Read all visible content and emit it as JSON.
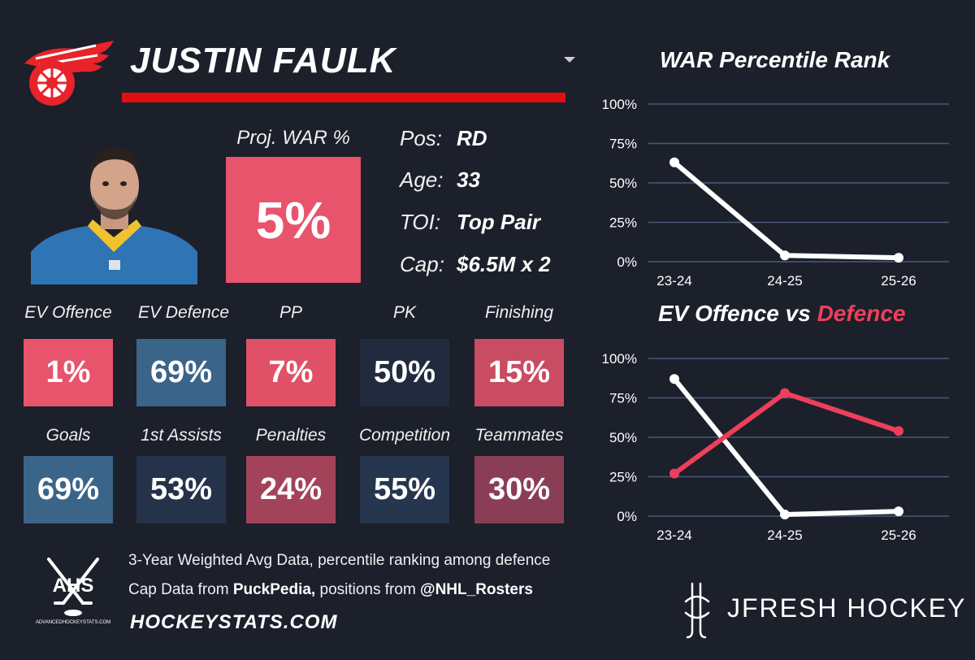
{
  "player": {
    "name": "JUSTIN FAULK",
    "proj_war_label": "Proj. WAR %",
    "proj_war_value": "5%",
    "info": [
      {
        "key": "Pos:",
        "value": "RD"
      },
      {
        "key": "Age:",
        "value": "33"
      },
      {
        "key": "TOI:",
        "value": "Top Pair"
      },
      {
        "key": "Cap:",
        "value": "$6.5M x 2"
      }
    ]
  },
  "stats": [
    {
      "label": "EV Offence",
      "value": "1%",
      "color": "#e8546b"
    },
    {
      "label": "EV Defence",
      "value": "69%",
      "color": "#3b6489"
    },
    {
      "label": "PP",
      "value": "7%",
      "color": "#e05168"
    },
    {
      "label": "PK",
      "value": "50%",
      "color": "#212b3d"
    },
    {
      "label": "Finishing",
      "value": "15%",
      "color": "#c94c63"
    },
    {
      "label": "Goals",
      "value": "69%",
      "color": "#3b6489"
    },
    {
      "label": "1st Assists",
      "value": "53%",
      "color": "#24324a"
    },
    {
      "label": "Penalties",
      "value": "24%",
      "color": "#a3435a"
    },
    {
      "label": "Competition",
      "value": "55%",
      "color": "#26364f"
    },
    {
      "label": "Teammates",
      "value": "30%",
      "color": "#8a3e55"
    }
  ],
  "footer": {
    "line1": "3-Year Weighted Avg Data, percentile ranking among defence",
    "line2_prefix": "Cap Data from ",
    "line2_bold1": "PuckPedia,",
    "line2_mid": " positions from ",
    "line2_bold2": "@NHL_Rosters",
    "site": "HOCKEYSTATS.COM",
    "ahs_logo_text": "AHS",
    "ahs_logo_subtext": "ADVANCEDHOCKEYSTATS.COM",
    "brand": "JFRESH HOCKEY"
  },
  "chart_data": [
    {
      "type": "line",
      "title": "WAR Percentile Rank",
      "categories": [
        "23-24",
        "24-25",
        "25-26"
      ],
      "yticks": [
        "100%",
        "75%",
        "50%",
        "25%",
        "0%"
      ],
      "ylim": [
        0,
        100
      ],
      "grid": true,
      "series": [
        {
          "values": [
            63,
            4,
            2.5
          ],
          "color": "#ffffff"
        }
      ]
    },
    {
      "type": "line",
      "title_part1": "EV Offence vs ",
      "title_part2": "Defence",
      "categories": [
        "23-24",
        "24-25",
        "25-26"
      ],
      "yticks": [
        "100%",
        "75%",
        "50%",
        "25%",
        "0%"
      ],
      "ylim": [
        0,
        100
      ],
      "grid": true,
      "series": [
        {
          "values": [
            87,
            1,
            3
          ],
          "color": "#ffffff"
        },
        {
          "values": [
            27,
            78,
            54
          ],
          "color": "#ee3f5a"
        }
      ]
    }
  ]
}
